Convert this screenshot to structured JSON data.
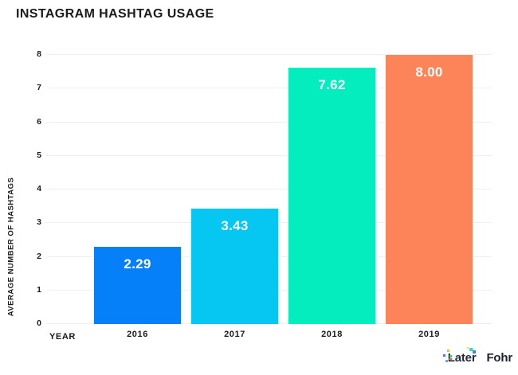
{
  "title": "INSTAGRAM HASHTAG USAGE",
  "chart_data": {
    "type": "bar",
    "title": "INSTAGRAM HASHTAG USAGE",
    "xlabel": "YEAR",
    "ylabel": "AVERAGE NUMBER OF HASHTAGS",
    "categories": [
      "2016",
      "2017",
      "2018",
      "2019"
    ],
    "values": [
      2.29,
      3.43,
      7.62,
      8.0
    ],
    "value_labels": [
      "2.29",
      "3.43",
      "7.62",
      "8.00"
    ],
    "bar_colors": [
      "#0680F9",
      "#06C7F2",
      "#04EDBE",
      "#FD8458"
    ],
    "ylim": [
      0,
      8
    ],
    "yticks": [
      0,
      1,
      2,
      3,
      4,
      5,
      6,
      7,
      8
    ],
    "grid": true,
    "legend": "none",
    "gridline_color": "#EFEFEF",
    "label_text_color": "#FFFFFF"
  },
  "footer": {
    "brand_later": "Later",
    "brand_fohr": "Fohr",
    "brand_color": "#232B39"
  }
}
